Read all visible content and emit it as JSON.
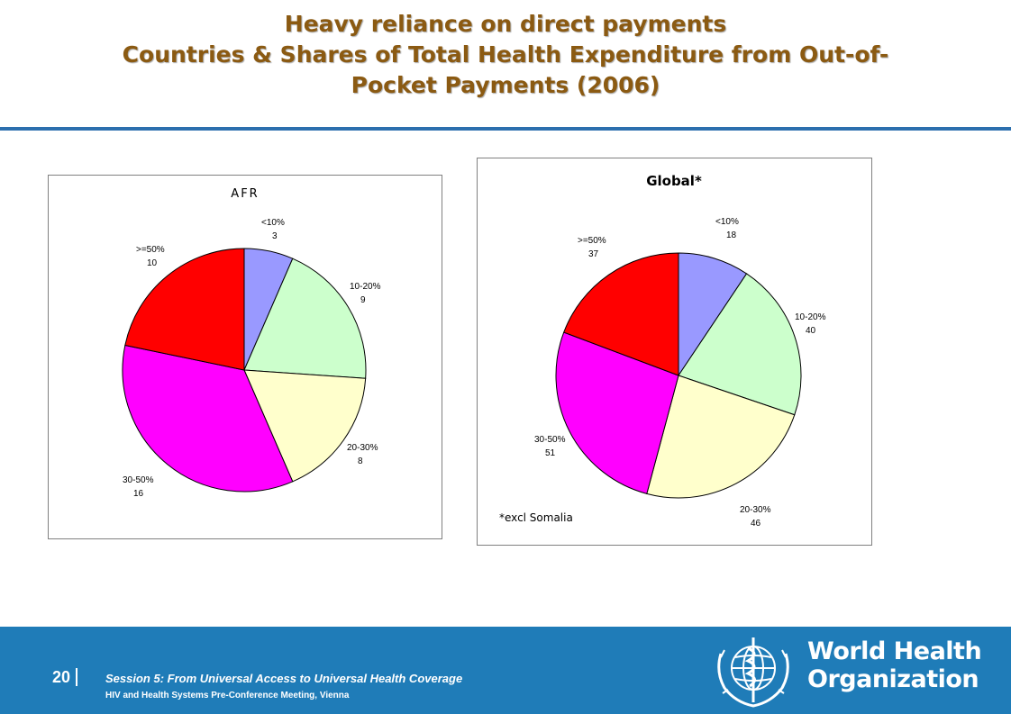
{
  "header": {
    "title_line1": "Heavy reliance on direct payments",
    "title_line2": "Countries & Shares of Total Health Expenditure from Out-of-",
    "title_line3": "Pocket Payments (2006)"
  },
  "colors": {
    "title": "#8B5A12",
    "rule": "#2C6FAE",
    "footer": "#1F7CB8",
    "slice_lt10": "#9999FF",
    "slice_10_20": "#CCFFCC",
    "slice_20_30": "#FFFFCC",
    "slice_30_50": "#FF00FF",
    "slice_ge50": "#FF0000"
  },
  "chart_data": [
    {
      "type": "pie",
      "title": "AFR",
      "categories": [
        "<10%",
        "10-20%",
        "20-30%",
        "30-50%",
        ">=50%"
      ],
      "values": [
        3,
        9,
        8,
        16,
        10
      ],
      "note": ""
    },
    {
      "type": "pie",
      "title": "Global*",
      "categories": [
        "<10%",
        "10-20%",
        "20-30%",
        "30-50%",
        ">=50%"
      ],
      "values": [
        18,
        40,
        46,
        51,
        37
      ],
      "note": "*excl Somalia"
    }
  ],
  "footer": {
    "page_number": "20",
    "session": "Session 5: From Universal Access to Universal Health Coverage",
    "meeting": "HIV and Health Systems Pre-Conference Meeting, Vienna",
    "org_line1": "World Health",
    "org_line2": "Organization"
  }
}
